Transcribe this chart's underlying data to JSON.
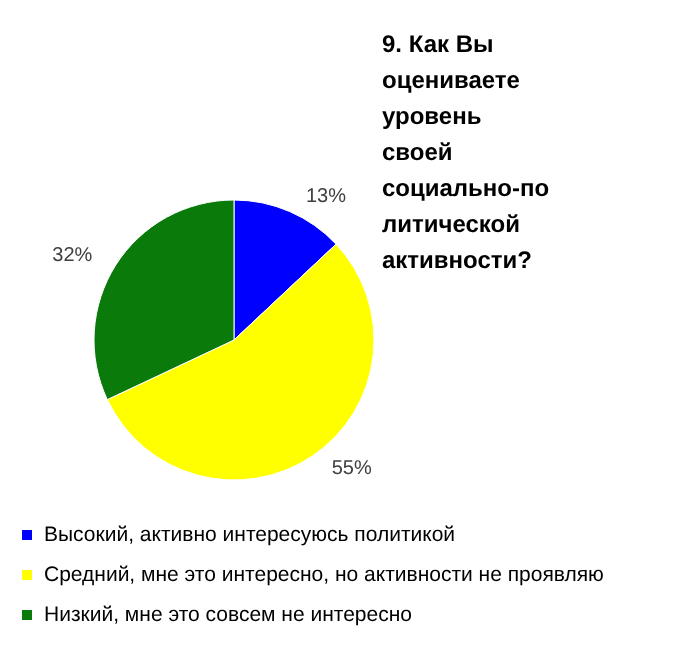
{
  "chart_data": {
    "type": "pie",
    "title": "9. Как Вы оцениваете уровень своей социально-политической активности?",
    "categories": [
      "Высокий, активно интересуюсь политикой",
      "Средний, мне это интересно, но активности не проявляю",
      "Низкий, мне это совсем не интересно"
    ],
    "values": [
      13,
      55,
      32
    ],
    "value_labels": [
      "13%",
      "55%",
      "32%"
    ],
    "colors": [
      "#0000ff",
      "#ffff00",
      "#0a7a0a"
    ],
    "legend": "bottom"
  }
}
